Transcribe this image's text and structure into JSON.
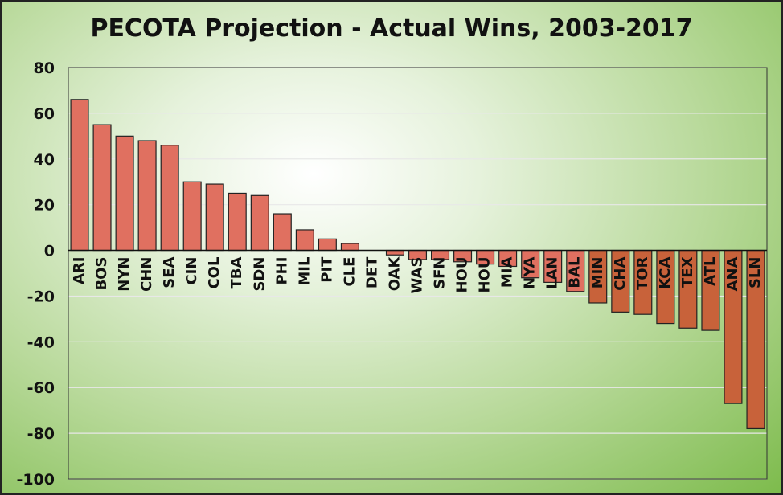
{
  "chart_data": {
    "type": "bar",
    "title": "PECOTA Projection - Actual Wins, 2003-2017",
    "xlabel": "",
    "ylabel": "",
    "ylim": [
      -100,
      80
    ],
    "yticks": [
      80,
      60,
      40,
      20,
      0,
      -20,
      -40,
      -60,
      -80,
      -100
    ],
    "grid": true,
    "categories": [
      "ARI",
      "BOS",
      "NYN",
      "CHN",
      "SEA",
      "CIN",
      "COL",
      "TBA",
      "SDN",
      "PHI",
      "MIL",
      "PIT",
      "CLE",
      "DET",
      "OAK",
      "WAS",
      "SFN",
      "HOU",
      "HOU",
      "MIA",
      "NYA",
      "LAN",
      "BAL",
      "MIN",
      "CHA",
      "TOR",
      "KCA",
      "TEX",
      "ATL",
      "ANA",
      "SLN"
    ],
    "values": [
      66,
      55,
      50,
      48,
      46,
      30,
      29,
      25,
      24,
      16,
      9,
      5,
      3,
      0,
      -2,
      -4,
      -4,
      -5,
      -6,
      -7,
      -12,
      -14,
      -18,
      -23,
      -27,
      -28,
      -32,
      -34,
      -35,
      -67,
      -78
    ],
    "bar_color": "#e07060",
    "bar_color_dark": "#c8623a"
  }
}
